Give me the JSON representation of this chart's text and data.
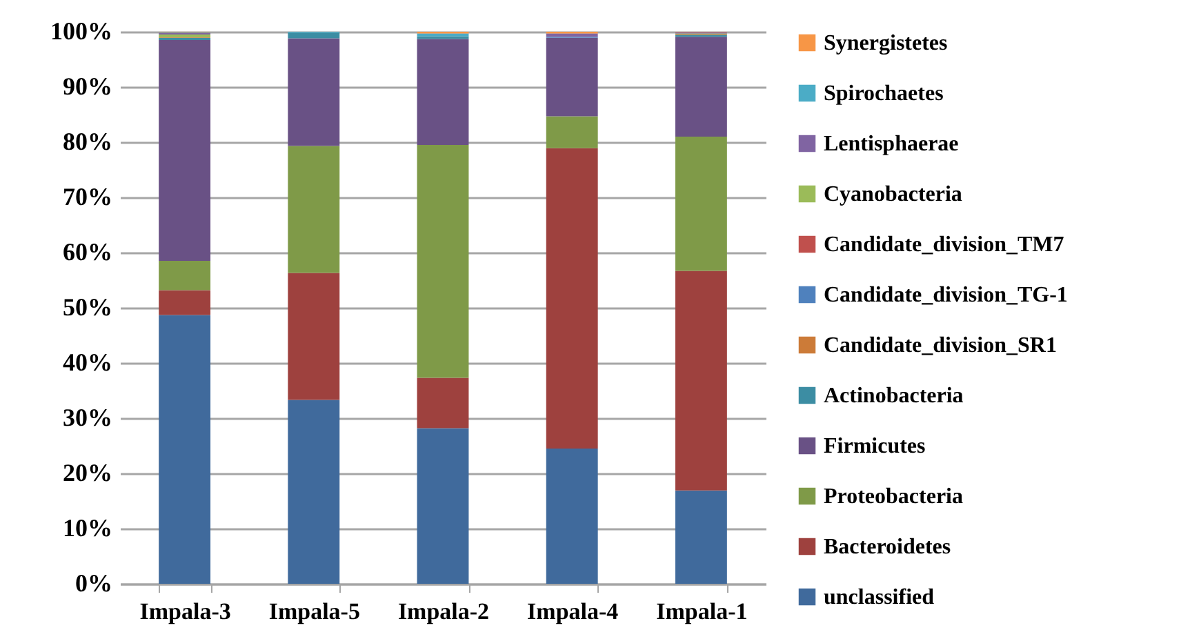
{
  "chart_data": {
    "type": "bar",
    "stacked": true,
    "categories": [
      "Impala-3",
      "Impala-5",
      "Impala-2",
      "Impala-4",
      "Impala-1"
    ],
    "series": [
      {
        "name": "unclassified",
        "color": "#406a9c",
        "values": [
          48.7,
          33.3,
          28.2,
          24.5,
          16.9
        ]
      },
      {
        "name": "Bacteroidetes",
        "color": "#9e413e",
        "values": [
          4.5,
          23.0,
          9.1,
          54.4,
          39.8
        ]
      },
      {
        "name": "Proteobacteria",
        "color": "#7f9a48",
        "values": [
          5.3,
          23.0,
          42.2,
          5.8,
          24.3
        ]
      },
      {
        "name": "Firmicutes",
        "color": "#695185",
        "values": [
          40.0,
          19.5,
          19.2,
          14.2,
          18.1
        ]
      },
      {
        "name": "Actinobacteria",
        "color": "#3c8da3",
        "values": [
          0.4,
          1.0,
          0.5,
          0,
          0.3
        ]
      },
      {
        "name": "Candidate_division_SR1",
        "color": "#cc7b38",
        "values": [
          0.1,
          0,
          0,
          0,
          0
        ]
      },
      {
        "name": "Candidate_division_TG-1",
        "color": "#4f81bd",
        "values": [
          0,
          0,
          0,
          0.2,
          0
        ]
      },
      {
        "name": "Candidate_division_TM7",
        "color": "#c0504d",
        "values": [
          0,
          0,
          0,
          0,
          0.1
        ]
      },
      {
        "name": "Cyanobacteria",
        "color": "#9bbb59",
        "values": [
          0.5,
          0,
          0,
          0,
          0.2
        ]
      },
      {
        "name": "Lentisphaerae",
        "color": "#8064a2",
        "values": [
          0.3,
          0,
          0,
          0.6,
          0.2
        ]
      },
      {
        "name": "Spirochaetes",
        "color": "#4bacc6",
        "values": [
          0.1,
          0.2,
          0.5,
          0,
          0
        ]
      },
      {
        "name": "Synergistetes",
        "color": "#f79646",
        "values": [
          0.1,
          0,
          0.3,
          0.3,
          0.1
        ]
      }
    ],
    "ylim": [
      0,
      100
    ],
    "yticks": [
      {
        "value": 0,
        "label": "0%"
      },
      {
        "value": 10,
        "label": "10%"
      },
      {
        "value": 20,
        "label": "20%"
      },
      {
        "value": 30,
        "label": "30%"
      },
      {
        "value": 40,
        "label": "40%"
      },
      {
        "value": 50,
        "label": "50%"
      },
      {
        "value": 60,
        "label": "60%"
      },
      {
        "value": 70,
        "label": "70%"
      },
      {
        "value": 80,
        "label": "80%"
      },
      {
        "value": 90,
        "label": "90%"
      },
      {
        "value": 100,
        "label": "100%"
      }
    ],
    "grid": "y",
    "legend": "right"
  }
}
